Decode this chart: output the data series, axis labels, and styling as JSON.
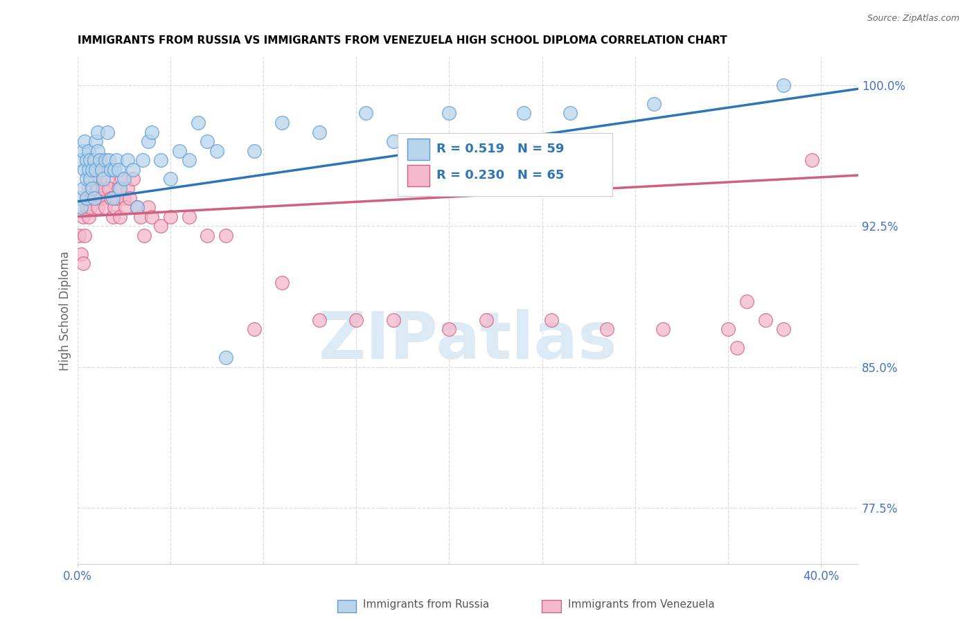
{
  "title": "IMMIGRANTS FROM RUSSIA VS IMMIGRANTS FROM VENEZUELA HIGH SCHOOL DIPLOMA CORRELATION CHART",
  "source": "Source: ZipAtlas.com",
  "ylabel": "High School Diploma",
  "xlim": [
    0.0,
    0.42
  ],
  "ylim": [
    0.745,
    1.015
  ],
  "watermark_text": "ZIPatlas",
  "russia_color": "#b8d4ea",
  "russia_edge": "#5b9bd5",
  "venezuela_color": "#f4b8cc",
  "venezuela_edge": "#d06080",
  "russia_R": 0.519,
  "russia_N": 59,
  "venezuela_R": 0.23,
  "venezuela_N": 65,
  "russia_scatter_x": [
    0.001,
    0.002,
    0.002,
    0.003,
    0.003,
    0.004,
    0.004,
    0.005,
    0.005,
    0.005,
    0.006,
    0.006,
    0.007,
    0.007,
    0.008,
    0.008,
    0.009,
    0.009,
    0.01,
    0.01,
    0.011,
    0.011,
    0.012,
    0.013,
    0.014,
    0.015,
    0.016,
    0.017,
    0.018,
    0.019,
    0.02,
    0.021,
    0.022,
    0.023,
    0.025,
    0.027,
    0.03,
    0.032,
    0.035,
    0.038,
    0.04,
    0.045,
    0.05,
    0.055,
    0.06,
    0.065,
    0.07,
    0.075,
    0.08,
    0.095,
    0.11,
    0.13,
    0.155,
    0.17,
    0.2,
    0.24,
    0.265,
    0.31,
    0.38
  ],
  "russia_scatter_y": [
    0.94,
    0.935,
    0.96,
    0.945,
    0.965,
    0.955,
    0.97,
    0.96,
    0.95,
    0.94,
    0.955,
    0.965,
    0.95,
    0.96,
    0.955,
    0.945,
    0.94,
    0.96,
    0.955,
    0.97,
    0.965,
    0.975,
    0.96,
    0.955,
    0.95,
    0.96,
    0.975,
    0.96,
    0.955,
    0.94,
    0.955,
    0.96,
    0.955,
    0.945,
    0.95,
    0.96,
    0.955,
    0.935,
    0.96,
    0.97,
    0.975,
    0.96,
    0.95,
    0.965,
    0.96,
    0.98,
    0.97,
    0.965,
    0.855,
    0.965,
    0.98,
    0.975,
    0.985,
    0.97,
    0.985,
    0.985,
    0.985,
    0.99,
    1.0
  ],
  "venezuela_scatter_x": [
    0.001,
    0.002,
    0.003,
    0.003,
    0.004,
    0.005,
    0.005,
    0.006,
    0.006,
    0.007,
    0.007,
    0.008,
    0.008,
    0.009,
    0.009,
    0.01,
    0.01,
    0.011,
    0.011,
    0.012,
    0.012,
    0.013,
    0.013,
    0.014,
    0.015,
    0.016,
    0.017,
    0.018,
    0.019,
    0.02,
    0.021,
    0.022,
    0.023,
    0.024,
    0.025,
    0.026,
    0.027,
    0.028,
    0.03,
    0.032,
    0.034,
    0.036,
    0.038,
    0.04,
    0.045,
    0.05,
    0.06,
    0.07,
    0.08,
    0.095,
    0.11,
    0.13,
    0.15,
    0.17,
    0.2,
    0.22,
    0.255,
    0.285,
    0.315,
    0.35,
    0.355,
    0.36,
    0.37,
    0.38,
    0.395
  ],
  "venezuela_scatter_y": [
    0.92,
    0.91,
    0.905,
    0.93,
    0.92,
    0.935,
    0.94,
    0.945,
    0.93,
    0.935,
    0.95,
    0.945,
    0.96,
    0.94,
    0.955,
    0.94,
    0.95,
    0.945,
    0.935,
    0.95,
    0.96,
    0.955,
    0.94,
    0.945,
    0.935,
    0.95,
    0.945,
    0.94,
    0.93,
    0.935,
    0.94,
    0.945,
    0.93,
    0.95,
    0.94,
    0.935,
    0.945,
    0.94,
    0.95,
    0.935,
    0.93,
    0.92,
    0.935,
    0.93,
    0.925,
    0.93,
    0.93,
    0.92,
    0.92,
    0.87,
    0.895,
    0.875,
    0.875,
    0.875,
    0.87,
    0.875,
    0.875,
    0.87,
    0.87,
    0.87,
    0.86,
    0.885,
    0.875,
    0.87,
    0.96
  ],
  "russia_line_x": [
    0.0,
    0.42
  ],
  "russia_line_y": [
    0.938,
    0.998
  ],
  "venezuela_line_x": [
    0.0,
    0.42
  ],
  "venezuela_line_y": [
    0.93,
    0.952
  ],
  "ytick_vals": [
    0.775,
    0.85,
    0.925,
    1.0
  ],
  "ytick_labels": [
    "77.5%",
    "85.0%",
    "92.5%",
    "100.0%"
  ],
  "xtick_vals": [
    0.0,
    0.4
  ],
  "xtick_labels": [
    "0.0%",
    "40.0%"
  ],
  "hgrid_vals": [
    0.775,
    0.85,
    0.925,
    1.0
  ],
  "vgrid_vals": [
    0.0,
    0.05,
    0.1,
    0.15,
    0.2,
    0.25,
    0.3,
    0.35,
    0.4
  ],
  "grid_color": "#dddddd",
  "title_fontsize": 11,
  "tick_color": "#4472c4",
  "axis_label_color": "#666666",
  "legend_russia_label": "R = 0.519   N = 59",
  "legend_venezuela_label": "R = 0.230   N = 65",
  "bottom_legend_russia": "Immigrants from Russia",
  "bottom_legend_venezuela": "Immigrants from Venezuela"
}
